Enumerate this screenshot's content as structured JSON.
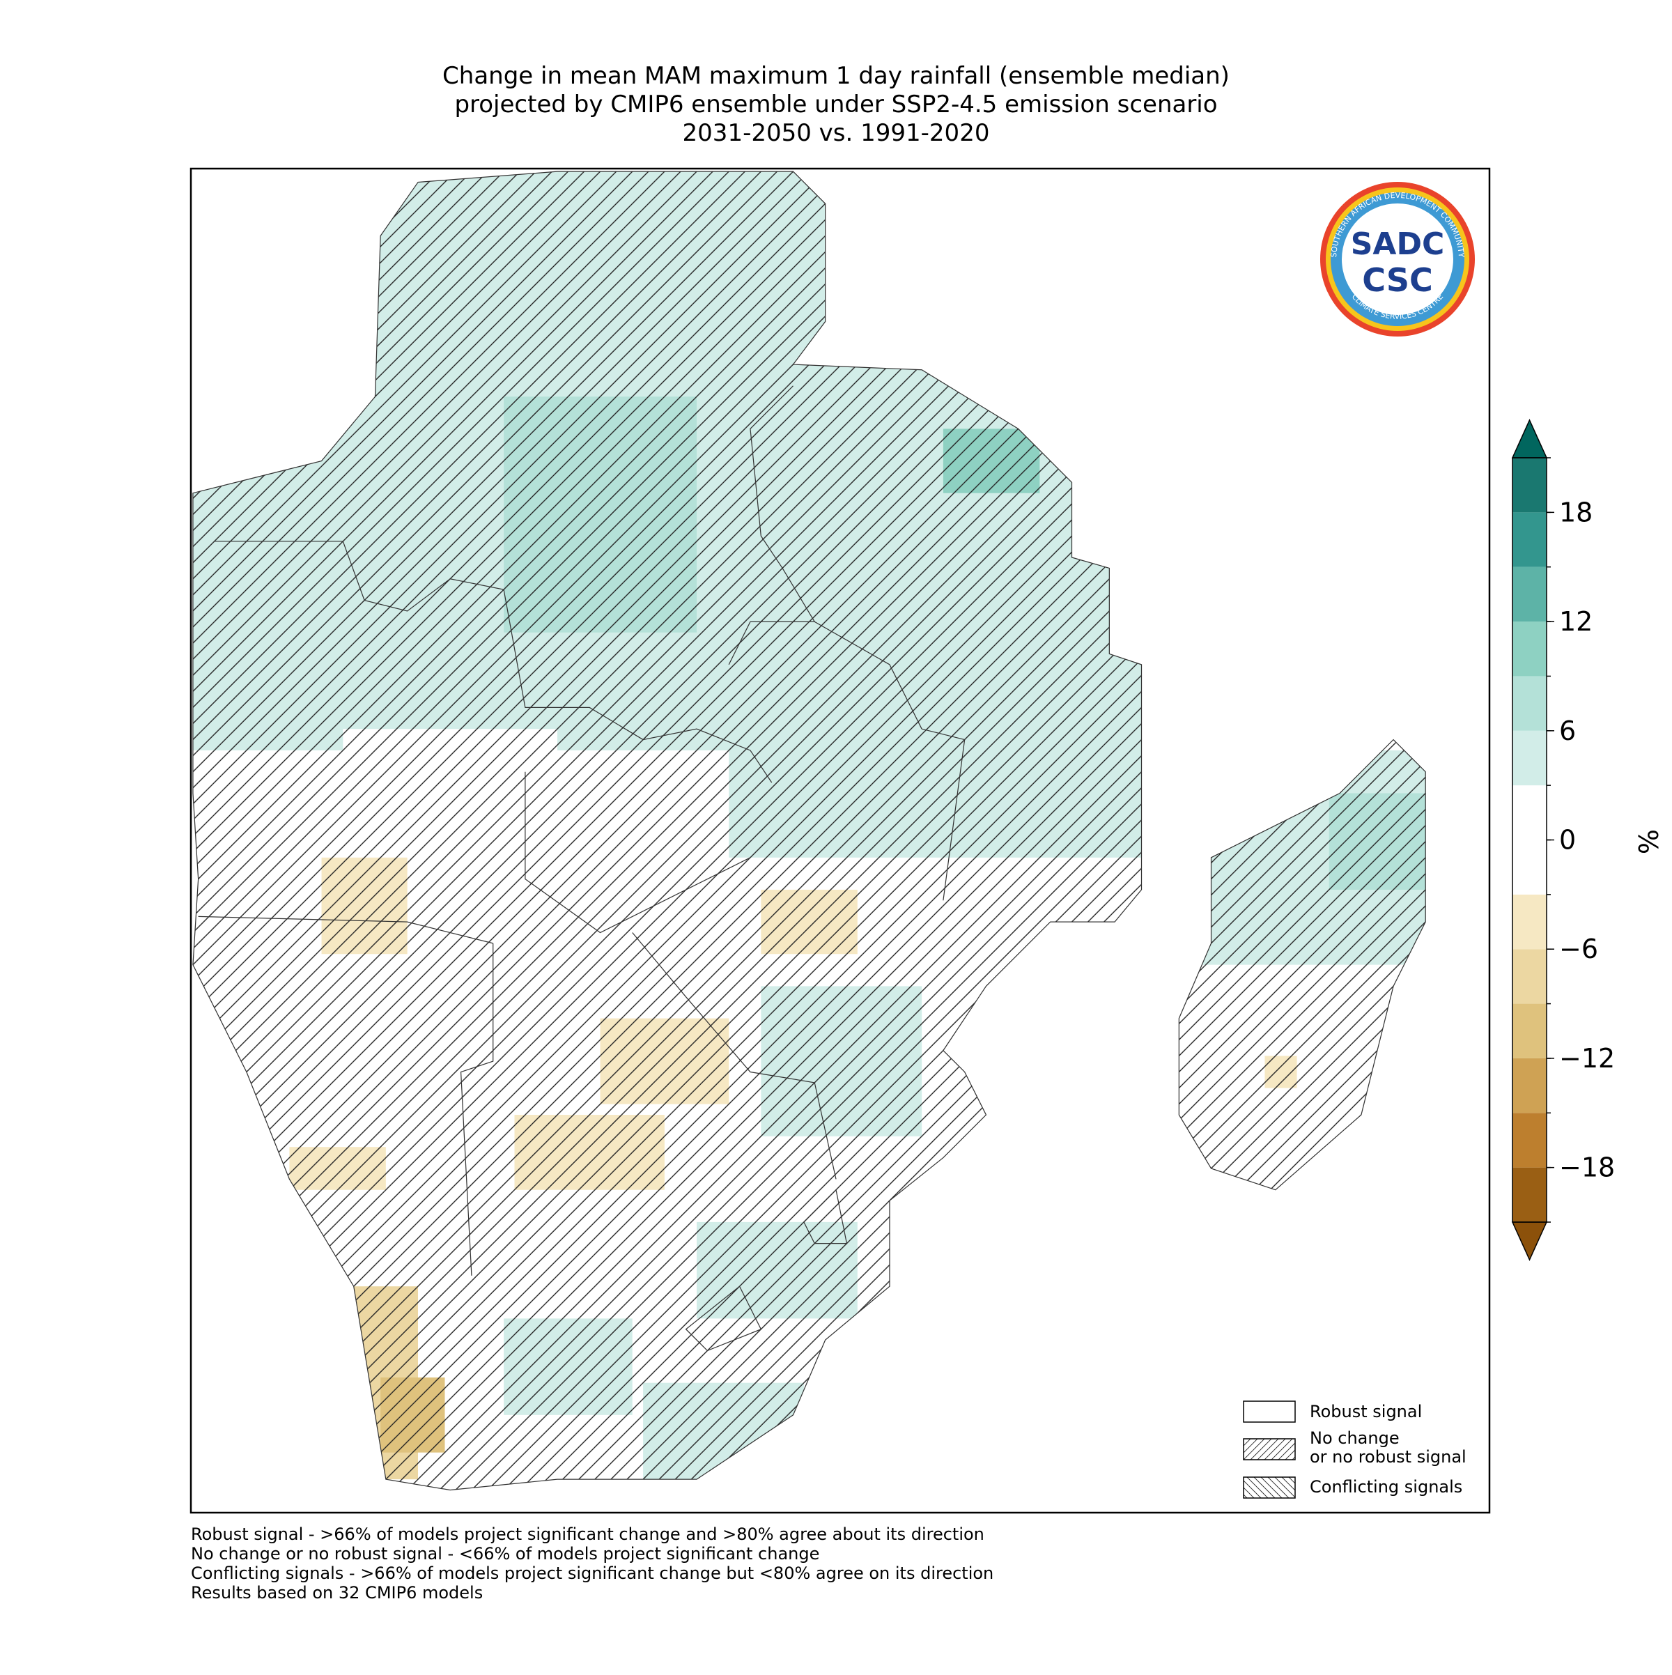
{
  "title": [
    "Change in mean MAM maximum 1 day rainfall (ensemble median)",
    "projected by CMIP6 ensemble under SSP2-4.5 emission scenario",
    "2031-2050 vs. 1991-2020"
  ],
  "colorbar": {
    "label": "%",
    "lim": [
      -21,
      21
    ],
    "boundaries": [
      -21,
      -18,
      -15,
      -12,
      -9,
      -6,
      -3,
      0,
      3,
      6,
      9,
      12,
      15,
      18,
      21
    ],
    "colors": [
      "#9a5f14",
      "#bd7f2e",
      "#cfa254",
      "#dfc27d",
      "#ecd7a2",
      "#f6e8c3",
      "#ffffff",
      "#ffffff",
      "#d2ede8",
      "#b4e1d8",
      "#8ed1c2",
      "#5db3a7",
      "#33968e",
      "#1a7870"
    ],
    "extend_colors": [
      "#8c510a",
      "#01665e"
    ],
    "ticks": [
      {
        "value": -18,
        "label": "−18"
      },
      {
        "value": -12,
        "label": "−12"
      },
      {
        "value": -6,
        "label": "−6"
      },
      0,
      6,
      12,
      18
    ]
  },
  "legend": [
    "Robust signal",
    "No change\nor no robust signal",
    "Conflicting signals"
  ],
  "logo": {
    "ring": "SOUTHERN AFRICAN DEVELOPMENT COMMUNITY",
    "name": "SADC",
    "abbr": "CSC",
    "bottom": "CLIMATE SERVICES CENTRE"
  },
  "notes": [
    "Robust signal - >66% of models project significant change and >80% agree about its direction",
    "No change or no robust signal - <66% of models project significant change",
    "Conflicting signals - >66% of models project significant change but <80% agree on its direction",
    "Results based on 32 CMIP6 models"
  ]
}
